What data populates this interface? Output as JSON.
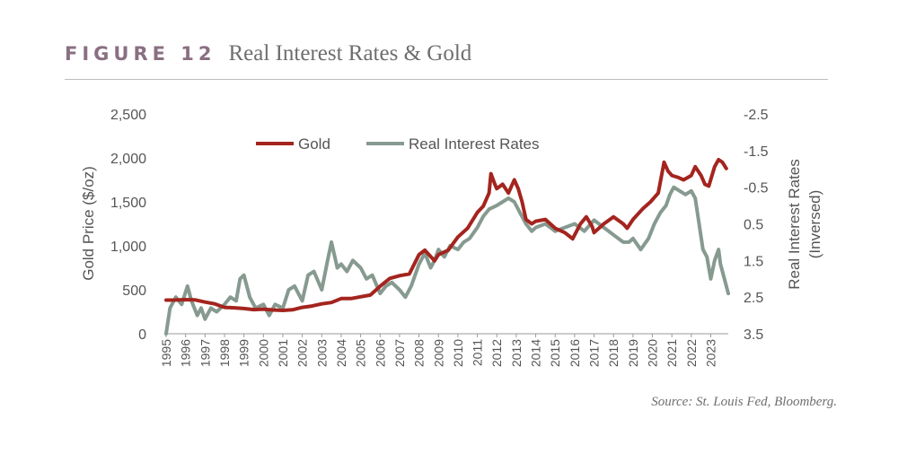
{
  "figure": {
    "label": "FIGURE 12",
    "title": "Real Interest Rates & Gold",
    "source": "Source: St. Louis Fed, Bloomberg."
  },
  "chart_data": {
    "type": "line",
    "title": "Real Interest Rates & Gold",
    "xlabel": "",
    "ylabel": "Gold Price ($/oz)",
    "y2label_line1": "Real Interest Rates",
    "y2label_line2": "(Inversed)",
    "ylim": [
      0,
      2500
    ],
    "y2lim": [
      -2.5,
      3.5
    ],
    "y2_inverted": true,
    "y_ticks": [
      "0",
      "500",
      "1,000",
      "1,500",
      "2,000",
      "2,500"
    ],
    "y_tick_values": [
      0,
      500,
      1000,
      1500,
      2000,
      2500
    ],
    "y2_ticks": [
      "-2.5",
      "-1.5",
      "-0.5",
      "0.5",
      "1.5",
      "2.5",
      "3.5"
    ],
    "y2_tick_values": [
      -2.5,
      -1.5,
      -0.5,
      0.5,
      1.5,
      2.5,
      3.5
    ],
    "x_ticks": [
      "1995",
      "1996",
      "1997",
      "1998",
      "1999",
      "2000",
      "2001",
      "2002",
      "2003",
      "2004",
      "2005",
      "2006",
      "2007",
      "2008",
      "2009",
      "2010",
      "2011",
      "2012",
      "2013",
      "2014",
      "2015",
      "2016",
      "2017",
      "2018",
      "2019",
      "2020",
      "2021",
      "2022",
      "2023"
    ],
    "xlim": [
      1995,
      2023.9
    ],
    "legend_position": "top-center",
    "series": [
      {
        "name": "Gold",
        "axis": "left",
        "color": "#a4241e",
        "x": [
          1995.0,
          1995.5,
          1996.0,
          1996.5,
          1997.0,
          1997.5,
          1998.0,
          1998.5,
          1999.0,
          1999.5,
          2000.0,
          2000.5,
          2001.0,
          2001.5,
          2002.0,
          2002.5,
          2003.0,
          2003.5,
          2004.0,
          2004.5,
          2005.0,
          2005.5,
          2006.0,
          2006.5,
          2007.0,
          2007.5,
          2008.0,
          2008.3,
          2008.8,
          2009.0,
          2009.5,
          2010.0,
          2010.5,
          2011.0,
          2011.3,
          2011.6,
          2011.7,
          2011.9,
          2012.0,
          2012.3,
          2012.6,
          2012.9,
          2013.1,
          2013.3,
          2013.5,
          2013.8,
          2014.0,
          2014.5,
          2015.0,
          2015.5,
          2015.9,
          2016.3,
          2016.6,
          2016.9,
          2017.0,
          2017.5,
          2018.0,
          2018.5,
          2018.7,
          2019.0,
          2019.5,
          2019.9,
          2020.3,
          2020.6,
          2020.8,
          2021.0,
          2021.3,
          2021.6,
          2022.0,
          2022.2,
          2022.5,
          2022.7,
          2022.9,
          2023.2,
          2023.4,
          2023.6,
          2023.8
        ],
        "values": [
          383,
          384,
          388,
          385,
          360,
          340,
          300,
          295,
          287,
          275,
          280,
          270,
          265,
          272,
          300,
          315,
          340,
          355,
          400,
          400,
          420,
          440,
          540,
          630,
          660,
          680,
          900,
          950,
          830,
          900,
          950,
          1100,
          1200,
          1380,
          1450,
          1600,
          1820,
          1700,
          1650,
          1700,
          1600,
          1750,
          1650,
          1500,
          1300,
          1250,
          1280,
          1300,
          1200,
          1150,
          1080,
          1250,
          1330,
          1220,
          1150,
          1250,
          1330,
          1250,
          1200,
          1300,
          1420,
          1500,
          1600,
          1950,
          1850,
          1800,
          1780,
          1750,
          1800,
          1900,
          1800,
          1700,
          1680,
          1900,
          1980,
          1950,
          1880
        ]
      },
      {
        "name": "Real Interest Rates",
        "axis": "right",
        "color": "#869a90",
        "x": [
          1995.0,
          1995.2,
          1995.5,
          1995.8,
          1996.1,
          1996.3,
          1996.6,
          1996.8,
          1997.0,
          1997.3,
          1997.6,
          1998.0,
          1998.3,
          1998.6,
          1998.8,
          1999.0,
          1999.3,
          1999.6,
          2000.0,
          2000.3,
          2000.6,
          2001.0,
          2001.3,
          2001.6,
          2002.0,
          2002.3,
          2002.6,
          2003.0,
          2003.3,
          2003.5,
          2003.8,
          2004.0,
          2004.3,
          2004.6,
          2005.0,
          2005.3,
          2005.6,
          2006.0,
          2006.3,
          2006.6,
          2007.0,
          2007.3,
          2007.6,
          2008.0,
          2008.3,
          2008.6,
          2008.8,
          2009.0,
          2009.3,
          2009.6,
          2010.0,
          2010.3,
          2010.6,
          2011.0,
          2011.3,
          2011.6,
          2012.0,
          2012.3,
          2012.6,
          2012.9,
          2013.2,
          2013.5,
          2013.8,
          2014.0,
          2014.5,
          2015.0,
          2015.5,
          2016.0,
          2016.5,
          2017.0,
          2017.5,
          2018.0,
          2018.5,
          2018.8,
          2019.0,
          2019.4,
          2019.8,
          2020.1,
          2020.4,
          2020.7,
          2020.9,
          2021.1,
          2021.4,
          2021.7,
          2022.0,
          2022.2,
          2022.4,
          2022.6,
          2022.8,
          2023.0,
          2023.2,
          2023.4,
          2023.5,
          2023.7,
          2023.9
        ],
        "values": [
          3.5,
          2.8,
          2.5,
          2.7,
          2.2,
          2.6,
          3.0,
          2.8,
          3.1,
          2.8,
          2.9,
          2.7,
          2.5,
          2.6,
          2.0,
          1.9,
          2.5,
          2.8,
          2.7,
          3.0,
          2.7,
          2.8,
          2.3,
          2.2,
          2.6,
          1.9,
          1.8,
          2.3,
          1.5,
          1.0,
          1.7,
          1.6,
          1.8,
          1.5,
          1.7,
          2.0,
          1.9,
          2.4,
          2.2,
          2.1,
          2.3,
          2.5,
          2.2,
          1.6,
          1.3,
          1.7,
          1.5,
          1.2,
          1.4,
          1.1,
          1.2,
          1.0,
          0.9,
          0.6,
          0.3,
          0.1,
          0.0,
          -0.1,
          -0.2,
          -0.1,
          0.2,
          0.5,
          0.7,
          0.6,
          0.5,
          0.7,
          0.6,
          0.5,
          0.7,
          0.4,
          0.6,
          0.8,
          1.0,
          1.0,
          0.9,
          1.2,
          0.9,
          0.5,
          0.2,
          0.0,
          -0.3,
          -0.5,
          -0.4,
          -0.3,
          -0.4,
          -0.2,
          0.5,
          1.2,
          1.4,
          2.0,
          1.5,
          1.2,
          1.6,
          2.0,
          2.4
        ]
      }
    ]
  }
}
